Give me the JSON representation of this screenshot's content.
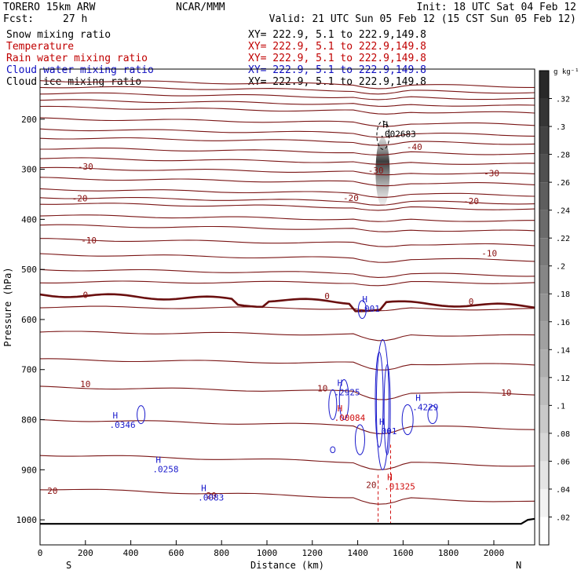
{
  "header": {
    "model": "TORERO  15km ARW",
    "org": "NCAR/MMM",
    "init": "Init: 18 UTC Sat 04 Feb 12",
    "fcst_label": "Fcst:",
    "fcst_value": "27 h",
    "valid": "Valid: 21 UTC Sun 05 Feb 12 (15 CST Sun 05 Feb 12)"
  },
  "fields": [
    {
      "name": "Snow mixing ratio",
      "xy": "",
      "color": "#000000"
    },
    {
      "name": "Temperature",
      "xy": "XY= 222.9,  5.1 to 222.9,149.8",
      "color": "#c00000"
    },
    {
      "name": "Rain water mixing ratio",
      "xy": "XY= 222.9,  5.1 to 222.9,149.8",
      "color": "#c00000"
    },
    {
      "name": "Cloud water mixing ratio",
      "xy": "XY= 222.9,  5.1 to 222.9,149.8",
      "color": "#1010c0"
    },
    {
      "name": "Cloud ice mixing ratio",
      "xy": "XY= 222.9,  5.1 to 222.9,149.8",
      "color": "#000000"
    }
  ],
  "snow_xy": "XY= 222.9,  5.1 to 222.9,149.8",
  "chart_data": {
    "type": "contour",
    "xlabel": "Distance (km)",
    "ylabel": "Pressure (hPa)",
    "xlim": [
      0,
      2180
    ],
    "ylim": [
      1050,
      100
    ],
    "x_ticks": [
      0,
      200,
      400,
      600,
      800,
      1000,
      1200,
      1400,
      1600,
      1800,
      2000
    ],
    "y_ticks": [
      200,
      300,
      400,
      500,
      600,
      700,
      800,
      900,
      1000
    ],
    "x_end_labels": [
      "S",
      "N"
    ],
    "colorbar": {
      "unit": "g kg⁻¹",
      "ticks": [
        ".32",
        ".3",
        ".28",
        ".26",
        ".24",
        ".22",
        ".2",
        ".18",
        ".16",
        ".14",
        ".12",
        ".1",
        ".08",
        ".06",
        ".04",
        ".02"
      ]
    },
    "temperature_contours": [
      {
        "label": "-40",
        "x": 1650,
        "p": 255
      },
      {
        "label": "-30",
        "x": 200,
        "p": 294
      },
      {
        "label": "-30",
        "x": 1480,
        "p": 302
      },
      {
        "label": "-30",
        "x": 1990,
        "p": 308
      },
      {
        "label": "-20",
        "x": 175,
        "p": 358
      },
      {
        "label": "-20",
        "x": 1370,
        "p": 357
      },
      {
        "label": "-20",
        "x": 1900,
        "p": 363
      },
      {
        "label": "-10",
        "x": 215,
        "p": 442
      },
      {
        "label": "-10",
        "x": 1980,
        "p": 468
      },
      {
        "label": "0",
        "x": 200,
        "p": 551
      },
      {
        "label": "0",
        "x": 1265,
        "p": 553
      },
      {
        "label": "0",
        "x": 1900,
        "p": 564
      },
      {
        "label": "10",
        "x": 200,
        "p": 729
      },
      {
        "label": "10",
        "x": 1245,
        "p": 737
      },
      {
        "label": "10",
        "x": 2055,
        "p": 746
      },
      {
        "label": "20",
        "x": 55,
        "p": 942
      },
      {
        "label": "20",
        "x": 755,
        "p": 951
      },
      {
        "label": "20",
        "x": 1460,
        "p": 930
      }
    ],
    "cloud_water_maxima": [
      {
        "label": ".0346",
        "x": 320,
        "p": 810
      },
      {
        "label": ".0258",
        "x": 510,
        "p": 899
      },
      {
        "label": ".0083",
        "x": 710,
        "p": 955
      },
      {
        "label": ".2925",
        "x": 1310,
        "p": 745
      },
      {
        "label": ".4229",
        "x": 1655,
        "p": 775
      },
      {
        "label": ".001",
        "x": 1420,
        "p": 578
      },
      {
        "label": ".001",
        "x": 1495,
        "p": 823
      }
    ],
    "rain_water_maxima": [
      {
        "label": ".00084",
        "x": 1310,
        "p": 796
      },
      {
        "label": ".01325",
        "x": 1530,
        "p": 933
      }
    ],
    "snow_maxima": [
      {
        "label": ".002683",
        "x": 1510,
        "p": 229
      }
    ],
    "surface_pressure": [
      [
        0,
        1008
      ],
      [
        500,
        1008
      ],
      [
        1000,
        1008
      ],
      [
        1500,
        1008
      ],
      [
        2000,
        1008
      ],
      [
        2120,
        1008
      ],
      [
        2150,
        1000
      ],
      [
        2180,
        998
      ]
    ]
  }
}
